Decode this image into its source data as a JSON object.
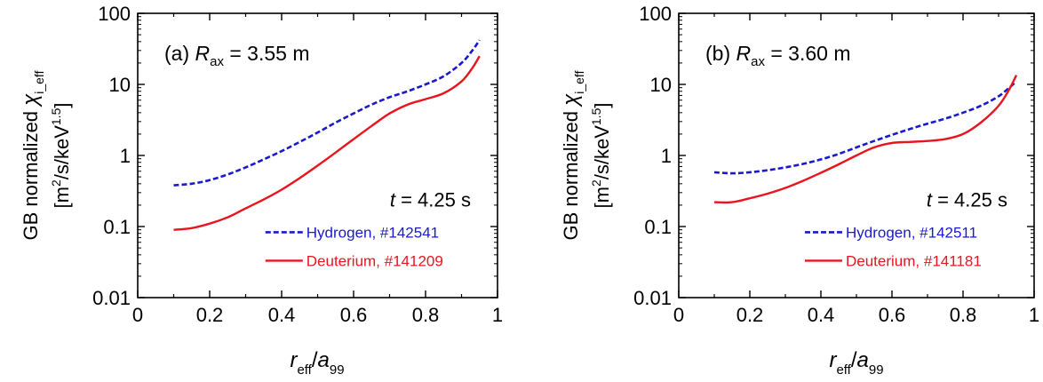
{
  "chart_data": [
    {
      "type": "line",
      "panel_label": "(a)",
      "panel_param": {
        "symbol": "R",
        "subscript": "ax",
        "value": " = 3.55 m"
      },
      "time_note": {
        "symbol": "t",
        "value": " = 4.25 s"
      },
      "xlabel": {
        "main": "r",
        "sub": "eff",
        "sep": "/",
        "main2": "a",
        "sub2": "99"
      },
      "ylabel": {
        "line1": "GB normalized ",
        "chi_symbol": "χ",
        "chi_sub": "i_eff",
        "line2_open": "[m",
        "line2_sup1": "2",
        "line2_mid": "/s/keV",
        "line2_sup2": "1.5",
        "line2_close": "]"
      },
      "xlim": [
        0,
        1
      ],
      "ylim": [
        0.01,
        100
      ],
      "y_scale": "log",
      "x_ticks": [
        "0",
        "0.2",
        "0.4",
        "0.6",
        "0.8",
        "1"
      ],
      "y_ticks": [
        "0.01",
        "0.1",
        "1",
        "10",
        "100"
      ],
      "legend_placement": "bottom-right",
      "series": [
        {
          "name": "Hydrogen, #142541",
          "color": "#1a1acc",
          "dash": "dashed",
          "x": [
            0.1,
            0.15,
            0.2,
            0.25,
            0.3,
            0.35,
            0.4,
            0.45,
            0.5,
            0.55,
            0.6,
            0.65,
            0.7,
            0.75,
            0.8,
            0.85,
            0.9,
            0.93,
            0.95
          ],
          "y": [
            0.38,
            0.4,
            0.45,
            0.54,
            0.68,
            0.88,
            1.15,
            1.55,
            2.1,
            2.9,
            3.9,
            5.2,
            6.6,
            8.0,
            10.0,
            13.0,
            20.0,
            30.0,
            42.0
          ]
        },
        {
          "name": "Deuterium, #141209",
          "color": "#e8141e",
          "dash": "solid",
          "x": [
            0.1,
            0.15,
            0.2,
            0.25,
            0.3,
            0.35,
            0.4,
            0.45,
            0.5,
            0.55,
            0.6,
            0.65,
            0.7,
            0.75,
            0.8,
            0.85,
            0.9,
            0.93,
            0.95
          ],
          "y": [
            0.09,
            0.095,
            0.11,
            0.135,
            0.18,
            0.24,
            0.33,
            0.48,
            0.72,
            1.1,
            1.7,
            2.6,
            3.9,
            5.2,
            6.2,
            7.5,
            11.0,
            17.0,
            25.0
          ]
        }
      ]
    },
    {
      "type": "line",
      "panel_label": "(b)",
      "panel_param": {
        "symbol": "R",
        "subscript": "ax",
        "value": " = 3.60 m"
      },
      "time_note": {
        "symbol": "t",
        "value": " = 4.25 s"
      },
      "xlabel": {
        "main": "r",
        "sub": "eff",
        "sep": "/",
        "main2": "a",
        "sub2": "99"
      },
      "ylabel": {
        "line1": "GB normalized ",
        "chi_symbol": "χ",
        "chi_sub": "i_eff",
        "line2_open": "[m",
        "line2_sup1": "2",
        "line2_mid": "/s/keV",
        "line2_sup2": "1.5",
        "line2_close": "]"
      },
      "xlim": [
        0,
        1
      ],
      "ylim": [
        0.01,
        100
      ],
      "y_scale": "log",
      "x_ticks": [
        "0",
        "0.2",
        "0.4",
        "0.6",
        "0.8",
        "1"
      ],
      "y_ticks": [
        "0.01",
        "0.1",
        "1",
        "10",
        "100"
      ],
      "legend_placement": "bottom-right",
      "series": [
        {
          "name": "Hydrogen, #142511",
          "color": "#1a1acc",
          "dash": "dashed",
          "x": [
            0.1,
            0.15,
            0.2,
            0.25,
            0.3,
            0.35,
            0.4,
            0.45,
            0.5,
            0.55,
            0.6,
            0.65,
            0.7,
            0.75,
            0.8,
            0.85,
            0.9,
            0.93,
            0.95
          ],
          "y": [
            0.58,
            0.56,
            0.58,
            0.62,
            0.68,
            0.76,
            0.88,
            1.05,
            1.3,
            1.6,
            1.95,
            2.35,
            2.8,
            3.3,
            4.0,
            5.0,
            6.8,
            9.0,
            11.0
          ]
        },
        {
          "name": "Deuterium, #141181",
          "color": "#e8141e",
          "dash": "solid",
          "x": [
            0.1,
            0.15,
            0.2,
            0.25,
            0.3,
            0.35,
            0.4,
            0.45,
            0.5,
            0.55,
            0.6,
            0.65,
            0.7,
            0.75,
            0.8,
            0.85,
            0.9,
            0.93,
            0.95
          ],
          "y": [
            0.22,
            0.22,
            0.25,
            0.29,
            0.35,
            0.44,
            0.57,
            0.75,
            1.0,
            1.3,
            1.5,
            1.55,
            1.6,
            1.7,
            2.0,
            2.9,
            5.0,
            8.5,
            13.5
          ]
        }
      ]
    }
  ]
}
